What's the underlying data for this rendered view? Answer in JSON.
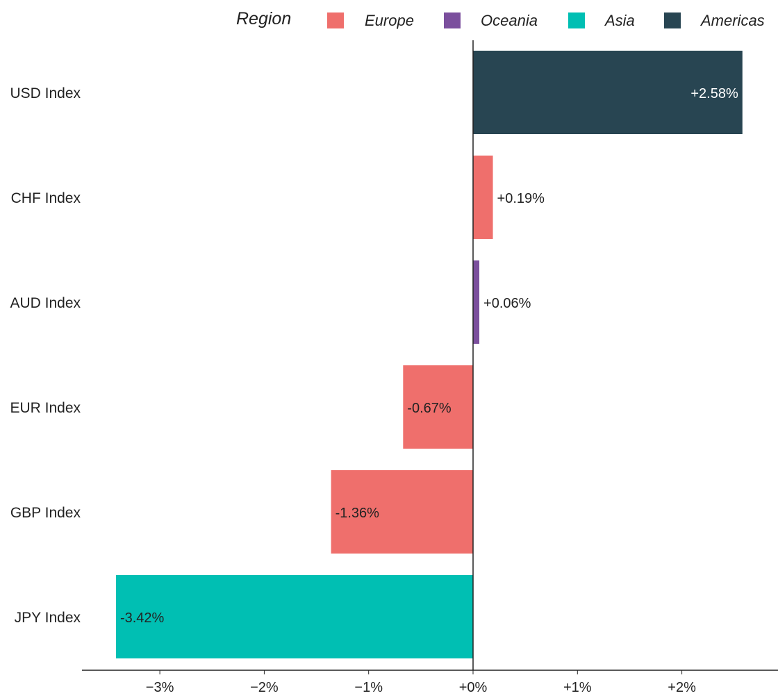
{
  "chart_data": {
    "type": "bar",
    "orientation": "horizontal",
    "legend_title": "Region",
    "legend_position": "top",
    "regions": [
      {
        "name": "Europe",
        "color": "#ef6f6c"
      },
      {
        "name": "Oceania",
        "color": "#7b4f9d"
      },
      {
        "name": "Asia",
        "color": "#00bfb3"
      },
      {
        "name": "Americas",
        "color": "#284552"
      }
    ],
    "categories": [
      "USD Index",
      "CHF Index",
      "AUD Index",
      "EUR Index",
      "GBP Index",
      "JPY Index"
    ],
    "values": [
      2.58,
      0.19,
      0.06,
      -0.67,
      -1.36,
      -3.42
    ],
    "category_regions": [
      "Americas",
      "Europe",
      "Oceania",
      "Europe",
      "Europe",
      "Asia"
    ],
    "data_labels": [
      "+2.58%",
      "+0.19%",
      "+0.06%",
      "-0.67%",
      "-1.36%",
      "-3.42%"
    ],
    "xticks": [
      -3,
      -2,
      -1,
      0,
      1,
      2
    ],
    "xtick_labels": [
      "−3%",
      "−2%",
      "−1%",
      "+0%",
      "+1%",
      "+2%"
    ],
    "xlim": [
      -3.75,
      2.9
    ],
    "grid": false,
    "title": "",
    "xlabel": "",
    "ylabel": ""
  }
}
